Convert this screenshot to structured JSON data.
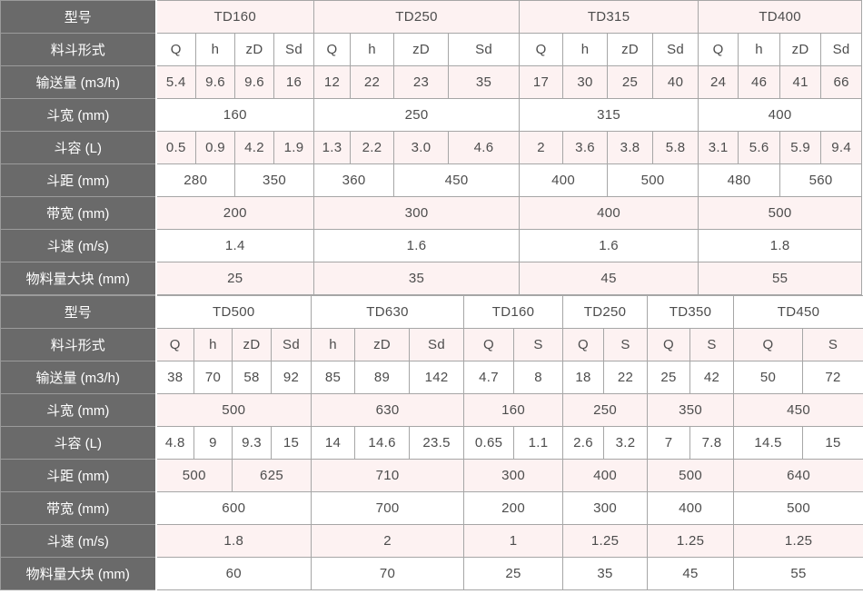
{
  "colors": {
    "header_bg": "#6a6a6a",
    "header_text": "#ffffff",
    "row_stripe": "#fdf2f2",
    "row_plain": "#ffffff",
    "grid_border": "#a6a6a6",
    "cell_text": "#4d4d4d"
  },
  "tables": [
    {
      "name": "upper-spec-table",
      "rows": [
        {
          "label": "型号",
          "cells": [
            {
              "t": "TD160",
              "s": 4
            },
            {
              "t": "TD250",
              "s": 4
            },
            {
              "t": "TD315",
              "s": 4
            },
            {
              "t": "TD400",
              "s": 4
            }
          ]
        },
        {
          "label": "料斗形式",
          "cells": [
            {
              "t": "Q"
            },
            {
              "t": "h"
            },
            {
              "t": "zD"
            },
            {
              "t": "Sd"
            },
            {
              "t": "Q"
            },
            {
              "t": "h"
            },
            {
              "t": "zD"
            },
            {
              "t": "Sd"
            },
            {
              "t": "Q"
            },
            {
              "t": "h"
            },
            {
              "t": "zD"
            },
            {
              "t": "Sd"
            },
            {
              "t": "Q"
            },
            {
              "t": "h"
            },
            {
              "t": "zD"
            },
            {
              "t": "Sd"
            }
          ]
        },
        {
          "label": "输送量 (m3/h)",
          "cells": [
            {
              "t": "5.4"
            },
            {
              "t": "9.6"
            },
            {
              "t": "9.6"
            },
            {
              "t": "16"
            },
            {
              "t": "12"
            },
            {
              "t": "22"
            },
            {
              "t": "23"
            },
            {
              "t": "35"
            },
            {
              "t": "17"
            },
            {
              "t": "30"
            },
            {
              "t": "25"
            },
            {
              "t": "40"
            },
            {
              "t": "24"
            },
            {
              "t": "46"
            },
            {
              "t": "41"
            },
            {
              "t": "66"
            }
          ]
        },
        {
          "label": "斗宽 (mm)",
          "cells": [
            {
              "t": "160",
              "s": 4
            },
            {
              "t": "250",
              "s": 4
            },
            {
              "t": "315",
              "s": 4
            },
            {
              "t": "400",
              "s": 4
            }
          ]
        },
        {
          "label": "斗容 (L)",
          "cells": [
            {
              "t": "0.5"
            },
            {
              "t": "0.9"
            },
            {
              "t": "4.2"
            },
            {
              "t": "1.9"
            },
            {
              "t": "1.3"
            },
            {
              "t": "2.2"
            },
            {
              "t": "3.0"
            },
            {
              "t": "4.6"
            },
            {
              "t": "2"
            },
            {
              "t": "3.6"
            },
            {
              "t": "3.8"
            },
            {
              "t": "5.8"
            },
            {
              "t": "3.1"
            },
            {
              "t": "5.6"
            },
            {
              "t": "5.9"
            },
            {
              "t": "9.4"
            }
          ]
        },
        {
          "label": "斗距 (mm)",
          "cells": [
            {
              "t": "280",
              "s": 2
            },
            {
              "t": "350",
              "s": 2
            },
            {
              "t": "360",
              "s": 2
            },
            {
              "t": "450",
              "s": 2
            },
            {
              "t": "400",
              "s": 2
            },
            {
              "t": "500",
              "s": 2
            },
            {
              "t": "480",
              "s": 2
            },
            {
              "t": "560",
              "s": 2
            }
          ]
        },
        {
          "label": "带宽 (mm)",
          "cells": [
            {
              "t": "200",
              "s": 4
            },
            {
              "t": "300",
              "s": 4
            },
            {
              "t": "400",
              "s": 4
            },
            {
              "t": "500",
              "s": 4
            }
          ]
        },
        {
          "label": "斗速 (m/s)",
          "cells": [
            {
              "t": "1.4",
              "s": 4
            },
            {
              "t": "1.6",
              "s": 4
            },
            {
              "t": "1.6",
              "s": 4
            },
            {
              "t": "1.8",
              "s": 4
            }
          ]
        },
        {
          "label": "物料量大块 (mm)",
          "cells": [
            {
              "t": "25",
              "s": 4
            },
            {
              "t": "35",
              "s": 4
            },
            {
              "t": "45",
              "s": 4
            },
            {
              "t": "55",
              "s": 4
            }
          ]
        }
      ]
    },
    {
      "name": "lower-spec-table",
      "rows": [
        {
          "label": "型号",
          "cells": [
            {
              "t": "TD500",
              "s": 4
            },
            {
              "t": "TD630",
              "s": 3
            },
            {
              "t": "TD160",
              "s": 2
            },
            {
              "t": "TD250",
              "s": 2
            },
            {
              "t": "TD350",
              "s": 2
            },
            {
              "t": "TD450",
              "s": 2
            }
          ]
        },
        {
          "label": "料斗形式",
          "cells": [
            {
              "t": "Q"
            },
            {
              "t": "h"
            },
            {
              "t": "zD"
            },
            {
              "t": "Sd"
            },
            {
              "t": "h"
            },
            {
              "t": "zD"
            },
            {
              "t": "Sd"
            },
            {
              "t": "Q"
            },
            {
              "t": "S"
            },
            {
              "t": "Q"
            },
            {
              "t": "S"
            },
            {
              "t": "Q"
            },
            {
              "t": "S"
            },
            {
              "t": "Q"
            },
            {
              "t": "S"
            }
          ]
        },
        {
          "label": "输送量 (m3/h)",
          "cells": [
            {
              "t": "38"
            },
            {
              "t": "70"
            },
            {
              "t": "58"
            },
            {
              "t": "92"
            },
            {
              "t": "85"
            },
            {
              "t": "89"
            },
            {
              "t": "142"
            },
            {
              "t": "4.7"
            },
            {
              "t": "8"
            },
            {
              "t": "18"
            },
            {
              "t": "22"
            },
            {
              "t": "25"
            },
            {
              "t": "42"
            },
            {
              "t": "50"
            },
            {
              "t": "72"
            }
          ]
        },
        {
          "label": "斗宽 (mm)",
          "cells": [
            {
              "t": "500",
              "s": 4
            },
            {
              "t": "630",
              "s": 3
            },
            {
              "t": "160",
              "s": 2
            },
            {
              "t": "250",
              "s": 2
            },
            {
              "t": "350",
              "s": 2
            },
            {
              "t": "450",
              "s": 2
            }
          ]
        },
        {
          "label": "斗容 (L)",
          "cells": [
            {
              "t": "4.8"
            },
            {
              "t": "9"
            },
            {
              "t": "9.3"
            },
            {
              "t": "15"
            },
            {
              "t": "14"
            },
            {
              "t": "14.6"
            },
            {
              "t": "23.5"
            },
            {
              "t": "0.65"
            },
            {
              "t": "1.1"
            },
            {
              "t": "2.6"
            },
            {
              "t": "3.2"
            },
            {
              "t": "7"
            },
            {
              "t": "7.8"
            },
            {
              "t": "14.5"
            },
            {
              "t": "15"
            }
          ]
        },
        {
          "label": "斗距 (mm)",
          "cells": [
            {
              "t": "500",
              "s": 2
            },
            {
              "t": "625",
              "s": 2
            },
            {
              "t": "710",
              "s": 3
            },
            {
              "t": "300",
              "s": 2
            },
            {
              "t": "400",
              "s": 2
            },
            {
              "t": "500",
              "s": 2
            },
            {
              "t": "640",
              "s": 2
            }
          ]
        },
        {
          "label": "带宽 (mm)",
          "cells": [
            {
              "t": "600",
              "s": 4
            },
            {
              "t": "700",
              "s": 3
            },
            {
              "t": "200",
              "s": 2
            },
            {
              "t": "300",
              "s": 2
            },
            {
              "t": "400",
              "s": 2
            },
            {
              "t": "500",
              "s": 2
            }
          ]
        },
        {
          "label": "斗速 (m/s)",
          "cells": [
            {
              "t": "1.8",
              "s": 4
            },
            {
              "t": "2",
              "s": 3
            },
            {
              "t": "1",
              "s": 2
            },
            {
              "t": "1.25",
              "s": 2
            },
            {
              "t": "1.25",
              "s": 2
            },
            {
              "t": "1.25",
              "s": 2
            }
          ]
        },
        {
          "label": "物料量大块 (mm)",
          "cells": [
            {
              "t": "60",
              "s": 4
            },
            {
              "t": "70",
              "s": 3
            },
            {
              "t": "25",
              "s": 2
            },
            {
              "t": "35",
              "s": 2
            },
            {
              "t": "45",
              "s": 2
            },
            {
              "t": "55",
              "s": 2
            }
          ]
        }
      ]
    }
  ]
}
